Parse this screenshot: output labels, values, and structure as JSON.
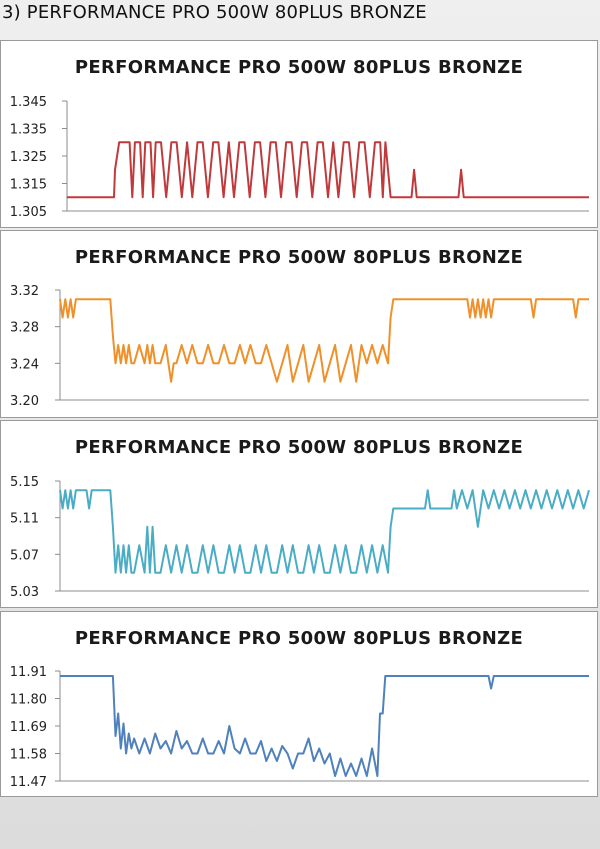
{
  "page_heading": "3) PERFORMANCE PRO 500W 80PLUS BRONZE",
  "chart_data": [
    {
      "type": "line",
      "title": "PERFORMANCE PRO 500W 80PLUS BRONZE",
      "xlabel": "",
      "ylabel": "",
      "ylim": [
        1.305,
        1.345
      ],
      "y_ticks": [
        "1.345",
        "1.335",
        "1.325",
        "1.315",
        "1.305"
      ],
      "grid": false,
      "legend": "none",
      "color": "#c0393b",
      "series": [
        {
          "x": [
            0,
            9,
            9.2,
            10,
            11,
            12,
            12.5,
            13,
            14,
            14.5,
            15,
            16,
            16.5,
            17,
            18,
            19,
            20,
            21,
            22,
            23,
            24,
            25,
            26,
            27,
            28,
            29,
            30,
            31,
            32,
            33,
            34,
            35,
            36,
            37,
            38,
            39,
            40,
            41,
            42,
            43,
            44,
            45,
            46,
            47,
            48,
            49,
            50,
            51,
            52,
            53,
            54,
            55,
            56,
            57,
            58,
            59,
            60,
            60.5,
            61,
            62,
            63,
            63.5,
            64,
            66,
            66.5,
            67,
            70,
            75,
            75.5,
            76,
            100
          ],
          "y": [
            1.31,
            1.31,
            1.32,
            1.33,
            1.33,
            1.33,
            1.31,
            1.33,
            1.33,
            1.31,
            1.33,
            1.33,
            1.31,
            1.33,
            1.33,
            1.31,
            1.33,
            1.33,
            1.31,
            1.33,
            1.31,
            1.33,
            1.33,
            1.31,
            1.33,
            1.33,
            1.31,
            1.33,
            1.31,
            1.33,
            1.33,
            1.31,
            1.33,
            1.33,
            1.31,
            1.33,
            1.33,
            1.31,
            1.33,
            1.33,
            1.31,
            1.33,
            1.33,
            1.31,
            1.33,
            1.33,
            1.31,
            1.33,
            1.31,
            1.33,
            1.33,
            1.31,
            1.33,
            1.33,
            1.31,
            1.33,
            1.33,
            1.31,
            1.33,
            1.31,
            1.31,
            1.31,
            1.31,
            1.31,
            1.32,
            1.31,
            1.31,
            1.31,
            1.32,
            1.31,
            1.31
          ]
        }
      ]
    },
    {
      "type": "line",
      "title": "PERFORMANCE PRO 500W 80PLUS BRONZE",
      "xlabel": "",
      "ylabel": "",
      "ylim": [
        3.2,
        3.32
      ],
      "y_ticks": [
        "3.32",
        "3.28",
        "3.24",
        "3.20"
      ],
      "grid": false,
      "legend": "none",
      "color": "#f0902a",
      "series": [
        {
          "x": [
            0,
            0.5,
            1,
            1.5,
            2,
            2.5,
            3,
            9.5,
            10,
            10.5,
            11,
            11.5,
            12,
            12.5,
            13,
            13.5,
            14,
            15,
            16,
            16.5,
            17,
            17.5,
            18,
            19,
            20,
            20.5,
            21,
            21.5,
            22,
            23,
            24,
            25,
            26,
            27,
            28,
            29,
            30,
            31,
            32,
            33,
            34,
            35,
            36,
            37,
            38,
            39,
            40,
            41,
            42,
            43,
            44,
            45,
            46,
            47,
            48,
            49,
            50,
            51,
            52,
            53,
            54,
            55,
            56,
            57,
            58,
            59,
            60,
            61,
            62,
            62.5,
            63,
            63.5,
            64,
            67,
            68,
            77,
            77.5,
            78,
            78.5,
            79,
            79.5,
            80,
            80.5,
            81,
            81.5,
            82,
            89,
            89.5,
            90,
            97,
            97.5,
            98,
            100
          ],
          "y": [
            3.31,
            3.29,
            3.31,
            3.29,
            3.31,
            3.29,
            3.31,
            3.31,
            3.27,
            3.24,
            3.26,
            3.24,
            3.26,
            3.24,
            3.26,
            3.24,
            3.24,
            3.26,
            3.24,
            3.26,
            3.24,
            3.26,
            3.24,
            3.24,
            3.26,
            3.24,
            3.22,
            3.24,
            3.24,
            3.26,
            3.24,
            3.26,
            3.24,
            3.24,
            3.26,
            3.24,
            3.24,
            3.26,
            3.24,
            3.24,
            3.26,
            3.24,
            3.26,
            3.24,
            3.24,
            3.26,
            3.24,
            3.22,
            3.24,
            3.26,
            3.22,
            3.24,
            3.26,
            3.22,
            3.24,
            3.26,
            3.22,
            3.24,
            3.26,
            3.22,
            3.24,
            3.26,
            3.22,
            3.26,
            3.24,
            3.26,
            3.24,
            3.26,
            3.24,
            3.29,
            3.31,
            3.31,
            3.31,
            3.31,
            3.31,
            3.31,
            3.29,
            3.31,
            3.29,
            3.31,
            3.29,
            3.31,
            3.29,
            3.31,
            3.29,
            3.31,
            3.31,
            3.29,
            3.31,
            3.31,
            3.29,
            3.31,
            3.31
          ]
        }
      ]
    },
    {
      "type": "line",
      "title": "PERFORMANCE PRO 500W 80PLUS BRONZE",
      "xlabel": "",
      "ylabel": "",
      "ylim": [
        5.03,
        5.15
      ],
      "y_ticks": [
        "5.15",
        "5.11",
        "5.07",
        "5.03"
      ],
      "grid": false,
      "legend": "none",
      "color": "#4bacc6",
      "series": [
        {
          "x": [
            0,
            0.5,
            1,
            1.5,
            2,
            2.5,
            3,
            5,
            5.5,
            6,
            9.5,
            10,
            10.5,
            11,
            11.5,
            12,
            12.5,
            13,
            13.5,
            14,
            15,
            16,
            16.5,
            17,
            17.5,
            18,
            19,
            20,
            21,
            22,
            23,
            24,
            25,
            26,
            27,
            28,
            29,
            30,
            31,
            32,
            33,
            34,
            35,
            36,
            37,
            38,
            39,
            40,
            41,
            42,
            43,
            44,
            45,
            46,
            47,
            48,
            49,
            50,
            51,
            52,
            53,
            54,
            55,
            56,
            57,
            58,
            59,
            60,
            61,
            62,
            62.5,
            63,
            69,
            69.5,
            70,
            74,
            74.5,
            75,
            76,
            77,
            78,
            79,
            80,
            81,
            82,
            83,
            84,
            85,
            86,
            87,
            88,
            89,
            90,
            91,
            92,
            93,
            94,
            95,
            96,
            97,
            98,
            99,
            100
          ],
          "y": [
            5.14,
            5.12,
            5.14,
            5.12,
            5.14,
            5.12,
            5.14,
            5.14,
            5.12,
            5.14,
            5.14,
            5.1,
            5.05,
            5.08,
            5.05,
            5.08,
            5.05,
            5.08,
            5.05,
            5.05,
            5.08,
            5.05,
            5.1,
            5.05,
            5.1,
            5.05,
            5.05,
            5.08,
            5.05,
            5.08,
            5.05,
            5.08,
            5.05,
            5.05,
            5.08,
            5.05,
            5.08,
            5.05,
            5.05,
            5.08,
            5.05,
            5.08,
            5.05,
            5.05,
            5.08,
            5.05,
            5.08,
            5.05,
            5.05,
            5.08,
            5.05,
            5.08,
            5.05,
            5.05,
            5.08,
            5.05,
            5.08,
            5.05,
            5.05,
            5.08,
            5.05,
            5.08,
            5.05,
            5.05,
            5.08,
            5.05,
            5.08,
            5.05,
            5.08,
            5.05,
            5.1,
            5.12,
            5.12,
            5.14,
            5.12,
            5.12,
            5.14,
            5.12,
            5.14,
            5.12,
            5.14,
            5.1,
            5.14,
            5.12,
            5.14,
            5.12,
            5.14,
            5.12,
            5.14,
            5.12,
            5.14,
            5.12,
            5.14,
            5.12,
            5.14,
            5.12,
            5.14,
            5.12,
            5.14,
            5.12,
            5.14,
            5.12,
            5.14
          ]
        }
      ]
    },
    {
      "type": "line",
      "title": "PERFORMANCE PRO 500W 80PLUS BRONZE",
      "xlabel": "",
      "ylabel": "",
      "ylim": [
        11.47,
        11.91
      ],
      "y_ticks": [
        "11.91",
        "11.80",
        "11.69",
        "11.58",
        "11.47"
      ],
      "grid": false,
      "legend": "none",
      "color": "#4f81bd",
      "series": [
        {
          "x": [
            0,
            10,
            10.5,
            11,
            11.5,
            12,
            12.5,
            13,
            13.5,
            14,
            15,
            16,
            17,
            18,
            19,
            20,
            21,
            22,
            23,
            24,
            25,
            26,
            27,
            28,
            29,
            30,
            31,
            32,
            33,
            34,
            35,
            36,
            37,
            38,
            39,
            40,
            41,
            42,
            43,
            44,
            45,
            46,
            47,
            48,
            49,
            50,
            51,
            52,
            53,
            54,
            55,
            56,
            57,
            58,
            59,
            60,
            60.5,
            61,
            61.5,
            62,
            70,
            81,
            81.5,
            82,
            100
          ],
          "y": [
            11.89,
            11.89,
            11.65,
            11.74,
            11.6,
            11.7,
            11.58,
            11.66,
            11.6,
            11.64,
            11.58,
            11.64,
            11.58,
            11.66,
            11.6,
            11.63,
            11.58,
            11.67,
            11.6,
            11.63,
            11.58,
            11.58,
            11.64,
            11.58,
            11.58,
            11.63,
            11.58,
            11.69,
            11.6,
            11.58,
            11.64,
            11.58,
            11.58,
            11.63,
            11.55,
            11.6,
            11.55,
            11.61,
            11.58,
            11.52,
            11.58,
            11.58,
            11.64,
            11.55,
            11.6,
            11.54,
            11.58,
            11.49,
            11.56,
            11.49,
            11.54,
            11.49,
            11.56,
            11.49,
            11.6,
            11.49,
            11.74,
            11.74,
            11.89,
            11.89,
            11.89,
            11.89,
            11.84,
            11.89,
            11.89
          ]
        }
      ]
    }
  ]
}
